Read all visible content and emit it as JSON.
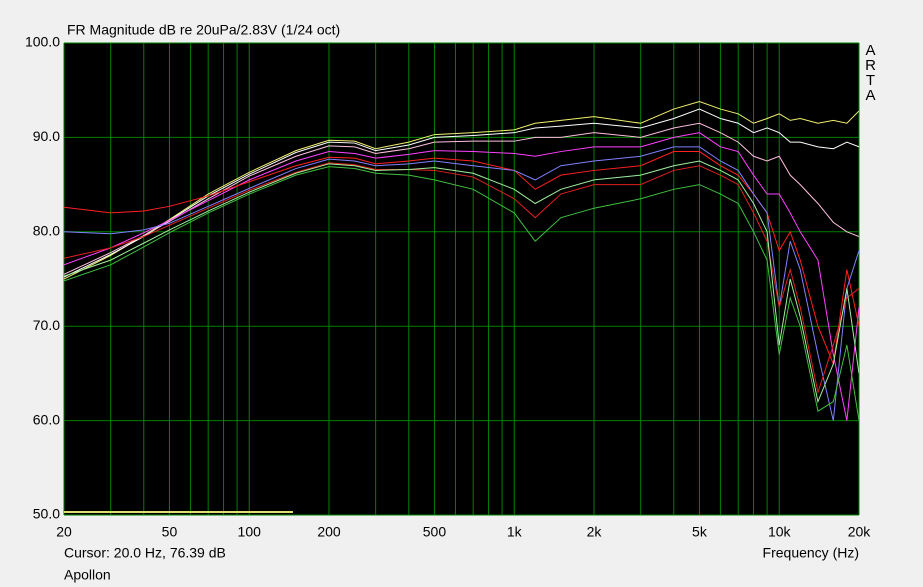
{
  "chart_data": {
    "type": "line",
    "title": "FR Magnitude dB re 20uPa/2.83V (1/24 oct)",
    "watermark": "ARTA",
    "x_label": "Frequency (Hz)",
    "cursor": "Cursor: 20.0 Hz, 76.39 dB",
    "name": "Apollon",
    "log_x": true,
    "grid": true,
    "grid_color": "#008000",
    "background": "#000000",
    "xlim": [
      20,
      20000
    ],
    "ylim": [
      50,
      100
    ],
    "xticks": [
      20,
      50,
      100,
      200,
      500,
      {
        "value": 1000,
        "label": "1k"
      },
      {
        "value": 2000,
        "label": "2k"
      },
      {
        "value": 5000,
        "label": "5k"
      },
      {
        "value": 10000,
        "label": "10k"
      },
      {
        "value": 20000,
        "label": "20k"
      }
    ],
    "xminorticks": [
      30,
      40,
      60,
      70,
      80,
      90,
      300,
      400,
      600,
      700,
      800,
      900,
      3000,
      4000,
      6000,
      7000,
      8000,
      9000
    ],
    "yticks": [
      {
        "value": 50,
        "label": "50.0"
      },
      {
        "value": 60,
        "label": "60.0"
      },
      {
        "value": 70,
        "label": "70.0"
      },
      {
        "value": 80,
        "label": "80.0"
      },
      {
        "value": 90,
        "label": "90.0"
      },
      {
        "value": 100,
        "label": "100.0"
      }
    ],
    "x": [
      20,
      30,
      40,
      50,
      70,
      100,
      150,
      200,
      250,
      300,
      400,
      500,
      700,
      1000,
      1200,
      1500,
      2000,
      3000,
      4000,
      5000,
      6000,
      7000,
      8000,
      9000,
      10000,
      11000,
      12000,
      14000,
      16000,
      18000,
      20000
    ],
    "series": [
      {
        "color": "#f0f070",
        "values": [
          75.0,
          77.5,
          79.6,
          81.3,
          84.0,
          86.3,
          88.6,
          89.7,
          89.6,
          88.8,
          89.5,
          90.3,
          90.5,
          90.8,
          91.5,
          91.8,
          92.2,
          91.5,
          93.0,
          93.8,
          93.0,
          92.5,
          91.5,
          92.0,
          92.5,
          91.8,
          92.0,
          91.5,
          91.8,
          91.5,
          92.8
        ]
      },
      {
        "color": "#ffffff",
        "values": [
          75.2,
          77.6,
          79.5,
          81.2,
          83.8,
          86.1,
          88.4,
          89.5,
          89.4,
          88.6,
          89.2,
          90.0,
          90.2,
          90.5,
          91.0,
          91.2,
          91.5,
          91.0,
          92.0,
          93.0,
          92.0,
          91.5,
          90.5,
          91.0,
          90.5,
          89.5,
          89.5,
          89.0,
          88.8,
          89.5,
          89.0
        ]
      },
      {
        "color": "#ffc0e0",
        "values": [
          75.5,
          77.8,
          79.6,
          81.1,
          83.5,
          85.9,
          88.0,
          89.1,
          89.0,
          88.3,
          88.8,
          89.5,
          89.6,
          89.6,
          90.0,
          90.0,
          90.5,
          90.0,
          91.0,
          91.5,
          90.5,
          89.5,
          88.0,
          87.5,
          88.0,
          86.0,
          85.0,
          83.0,
          81.0,
          80.0,
          79.5
        ]
      },
      {
        "color": "#ff40ff",
        "values": [
          76.5,
          78.3,
          79.9,
          81.2,
          83.3,
          85.5,
          87.5,
          88.5,
          88.3,
          87.8,
          88.2,
          88.6,
          88.5,
          88.3,
          88.0,
          88.5,
          89.0,
          89.0,
          90.0,
          90.5,
          89.0,
          88.5,
          86.0,
          84.0,
          84.0,
          82.0,
          80.0,
          77.0,
          67.0,
          60.0,
          72.0
        ]
      },
      {
        "color": "#ff2020",
        "values": [
          82.6,
          82.0,
          82.2,
          82.7,
          83.8,
          85.3,
          87.0,
          87.9,
          87.8,
          87.2,
          87.5,
          87.8,
          87.5,
          86.5,
          84.5,
          86.0,
          86.5,
          87.0,
          88.5,
          88.5,
          87.0,
          86.0,
          84.0,
          82.0,
          78.0,
          80.0,
          77.0,
          70.0,
          66.0,
          76.0,
          70.0
        ]
      },
      {
        "color": "#8080ff",
        "values": [
          80.0,
          79.8,
          80.2,
          80.9,
          82.7,
          84.6,
          86.7,
          87.7,
          87.5,
          87.0,
          87.2,
          87.5,
          87.0,
          86.5,
          85.5,
          87.0,
          87.5,
          88.0,
          89.0,
          89.0,
          87.5,
          86.5,
          84.0,
          82.0,
          72.0,
          79.0,
          76.0,
          67.0,
          60.0,
          74.0,
          78.0
        ]
      },
      {
        "color": "#e02020",
        "values": [
          77.2,
          78.3,
          79.5,
          80.7,
          82.5,
          84.4,
          86.3,
          87.3,
          87.1,
          86.6,
          86.6,
          86.5,
          85.8,
          83.5,
          81.5,
          84.0,
          85.0,
          85.0,
          86.5,
          87.0,
          86.0,
          85.0,
          82.0,
          79.0,
          72.0,
          76.0,
          72.0,
          63.0,
          68.0,
          73.0,
          74.0
        ]
      },
      {
        "color": "#40c040",
        "values": [
          74.8,
          76.5,
          78.4,
          79.9,
          82.0,
          84.0,
          86.0,
          86.9,
          86.7,
          86.2,
          86.0,
          85.5,
          84.5,
          82.0,
          79.0,
          81.5,
          82.5,
          83.5,
          84.5,
          85.0,
          84.0,
          83.0,
          80.0,
          77.0,
          67.0,
          73.0,
          70.0,
          61.0,
          62.0,
          68.0,
          60.0
        ]
      },
      {
        "color": "#a0f0a0",
        "values": [
          75.3,
          77.0,
          78.8,
          80.2,
          82.2,
          84.2,
          86.2,
          87.2,
          87.0,
          86.5,
          86.6,
          86.8,
          86.2,
          84.5,
          83.0,
          84.5,
          85.5,
          86.0,
          87.0,
          87.5,
          86.5,
          85.5,
          83.0,
          80.0,
          68.0,
          75.0,
          71.0,
          62.0,
          66.0,
          74.0,
          65.0
        ]
      }
    ]
  }
}
